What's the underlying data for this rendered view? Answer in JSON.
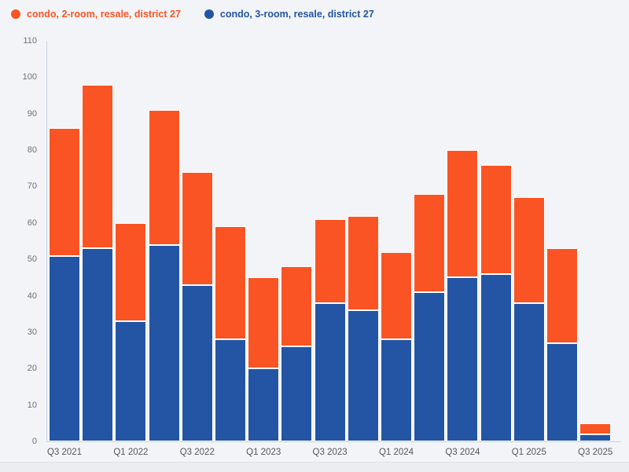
{
  "page": {
    "background": "#f2f4f7"
  },
  "colors": {
    "series_2room_orange": "#fb5424",
    "series_3room_blue": "#2355a4",
    "axis_line": "#c7d4e8",
    "y_tick_text": "#6d7177",
    "x_tick_text": "#54575c"
  },
  "legend": {
    "items": [
      {
        "label": "condo, 2-room, resale, district 27",
        "color": "#fb5424"
      },
      {
        "label": "condo, 3-room, resale, district 27",
        "color": "#2355a4"
      }
    ]
  },
  "chart_data": {
    "type": "bar",
    "stacked": true,
    "title": "",
    "xlabel": "",
    "ylabel": "",
    "categories": [
      "Q3 2021",
      "Q4 2021",
      "Q1 2022",
      "Q2 2022",
      "Q3 2022",
      "Q4 2022",
      "Q1 2023",
      "Q2 2023",
      "Q3 2023",
      "Q4 2023",
      "Q1 2024",
      "Q2 2024",
      "Q3 2024",
      "Q4 2024",
      "Q1 2025",
      "Q2 2025",
      "Q3 2025"
    ],
    "x_tick_labels": [
      "Q3 2021",
      "Q1 2022",
      "Q3 2022",
      "Q1 2023",
      "Q3 2023",
      "Q1 2024",
      "Q3 2024",
      "Q1 2025",
      "Q3 2025"
    ],
    "series": [
      {
        "name": "condo, 2-room, resale, district 27",
        "color": "#fb5424",
        "values": [
          35,
          45,
          27,
          37,
          31,
          31,
          25,
          22,
          23,
          26,
          24,
          27,
          35,
          30,
          29,
          26,
          3
        ]
      },
      {
        "name": "condo, 3-room, resale, district 27",
        "color": "#2355a4",
        "values": [
          51,
          53,
          33,
          54,
          43,
          28,
          20,
          26,
          38,
          36,
          28,
          41,
          45,
          46,
          38,
          27,
          2
        ]
      }
    ],
    "stack_totals": [
      86,
      98,
      60,
      91,
      74,
      59,
      45,
      48,
      61,
      62,
      52,
      68,
      80,
      76,
      67,
      53,
      5
    ],
    "ylim": [
      0,
      110
    ],
    "y_ticks": [
      0,
      10,
      20,
      30,
      40,
      50,
      60,
      70,
      80,
      90,
      100,
      110
    ],
    "grid": false,
    "legend_position": "top-left"
  }
}
